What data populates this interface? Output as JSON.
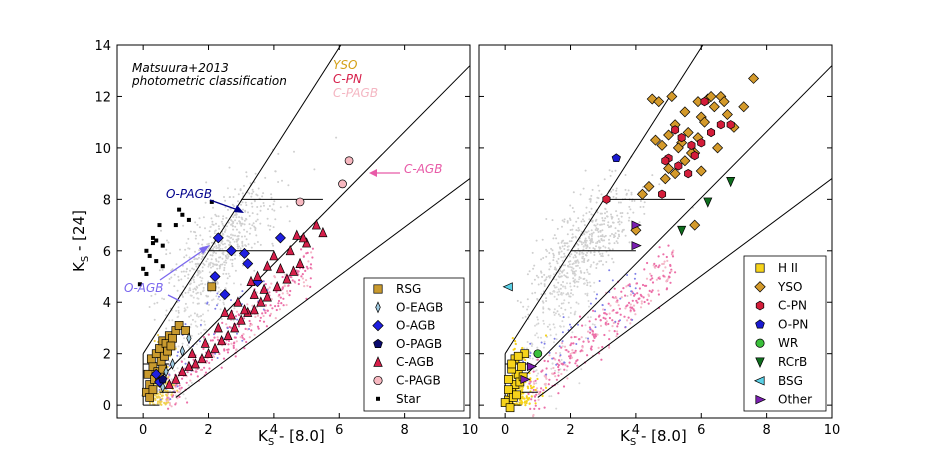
{
  "chart_data": [
    {
      "type": "scatter",
      "panel": "left",
      "xlabel_main": "K",
      "xlabel_sub": "S",
      "xlabel_rest": " - [8.0]",
      "ylabel_main": "K",
      "ylabel_sub": "S",
      "ylabel_rest": " - [24]",
      "xlim": [
        -0.8,
        10
      ],
      "ylim": [
        -0.5,
        14
      ],
      "xticks": [
        "0",
        "2",
        "4",
        "6",
        "8",
        "10"
      ],
      "yticks": [
        "0",
        "2",
        "4",
        "6",
        "8",
        "10",
        "12",
        "14"
      ],
      "title_annotation": [
        "Matsuura+2013",
        "photometric classification"
      ],
      "region_labels": [
        {
          "text": "YSO",
          "color": "#d4a017"
        },
        {
          "text": "C-PN",
          "color": "#d61f4a"
        },
        {
          "text": "C-PAGB",
          "color": "#f4b6c2"
        }
      ],
      "arrow_labels": [
        {
          "text": "O-PAGB",
          "color": "#00008b"
        },
        {
          "text": "C-AGB",
          "color": "#e85aa7"
        },
        {
          "text": "O-AGB",
          "color": "#7b68ee"
        }
      ],
      "legend": [
        {
          "name": "RSG",
          "marker": "square",
          "color": "#c99a2e"
        },
        {
          "name": "O-EAGB",
          "marker": "thin-diamond",
          "color": "#9ecae1"
        },
        {
          "name": "O-AGB",
          "marker": "diamond",
          "color": "#1f1fe0"
        },
        {
          "name": "O-PAGB",
          "marker": "pentagon",
          "color": "#0a0a6e"
        },
        {
          "name": "C-AGB",
          "marker": "triangle",
          "color": "#d61f4a"
        },
        {
          "name": "C-PAGB",
          "marker": "circle",
          "color": "#f7b8c0"
        },
        {
          "name": "Star",
          "marker": "small-square",
          "color": "#000000"
        }
      ],
      "series": [
        {
          "name": "RSG",
          "points": [
            [
              0.1,
              0.5
            ],
            [
              0.2,
              0.8
            ],
            [
              0.15,
              1.2
            ],
            [
              0.3,
              1.5
            ],
            [
              0.25,
              1.8
            ],
            [
              0.4,
              2.0
            ],
            [
              0.5,
              2.2
            ],
            [
              0.6,
              2.5
            ],
            [
              0.7,
              2.4
            ],
            [
              0.8,
              2.7
            ],
            [
              0.9,
              2.6
            ],
            [
              1.0,
              2.9
            ],
            [
              1.1,
              3.1
            ],
            [
              1.3,
              2.9
            ],
            [
              0.35,
              1.0
            ],
            [
              0.45,
              1.3
            ],
            [
              0.55,
              1.7
            ],
            [
              0.65,
              1.9
            ],
            [
              0.75,
              2.1
            ],
            [
              0.85,
              2.3
            ],
            [
              0.2,
              0.3
            ],
            [
              0.3,
              0.6
            ],
            [
              2.1,
              4.6
            ],
            [
              0.5,
              1.1
            ],
            [
              0.6,
              1.4
            ]
          ]
        },
        {
          "name": "O-EAGB",
          "points": [
            [
              0.5,
              0.9
            ],
            [
              0.7,
              1.3
            ],
            [
              0.9,
              1.6
            ],
            [
              1.2,
              2.1
            ],
            [
              0.6,
              0.7
            ],
            [
              1.4,
              2.6
            ]
          ]
        },
        {
          "name": "O-AGB",
          "points": [
            [
              0.4,
              1.2
            ],
            [
              0.5,
              0.9
            ],
            [
              2.2,
              5.0
            ],
            [
              2.3,
              6.5
            ],
            [
              2.5,
              4.3
            ],
            [
              2.7,
              6.0
            ],
            [
              3.1,
              5.9
            ],
            [
              3.2,
              5.5
            ],
            [
              3.5,
              4.8
            ],
            [
              4.2,
              6.5
            ]
          ]
        },
        {
          "name": "O-PAGB",
          "points": [
            [
              0.6,
              1.0
            ]
          ]
        },
        {
          "name": "C-AGB",
          "points": [
            [
              0.8,
              0.8
            ],
            [
              1.0,
              1.0
            ],
            [
              1.2,
              1.3
            ],
            [
              1.4,
              1.5
            ],
            [
              1.6,
              1.6
            ],
            [
              1.8,
              1.8
            ],
            [
              2.0,
              2.0
            ],
            [
              2.2,
              2.2
            ],
            [
              2.4,
              2.5
            ],
            [
              2.6,
              2.7
            ],
            [
              2.8,
              3.0
            ],
            [
              3.0,
              3.3
            ],
            [
              3.2,
              3.6
            ],
            [
              3.4,
              3.7
            ],
            [
              3.6,
              4.0
            ],
            [
              3.8,
              4.2
            ],
            [
              3.5,
              5.0
            ],
            [
              3.8,
              5.4
            ],
            [
              4.0,
              5.8
            ],
            [
              4.2,
              5.3
            ],
            [
              4.5,
              6.0
            ],
            [
              4.7,
              6.6
            ],
            [
              5.0,
              6.3
            ],
            [
              5.3,
              7.0
            ],
            [
              5.5,
              6.7
            ],
            [
              2.5,
              3.6
            ],
            [
              2.9,
              4.0
            ],
            [
              3.3,
              4.8
            ],
            [
              4.4,
              4.9
            ],
            [
              4.8,
              5.5
            ],
            [
              1.5,
              2.0
            ],
            [
              1.9,
              2.4
            ],
            [
              2.3,
              3.0
            ],
            [
              3.1,
              3.7
            ],
            [
              3.7,
              4.5
            ],
            [
              4.1,
              4.6
            ],
            [
              4.6,
              5.2
            ],
            [
              2.7,
              3.5
            ],
            [
              3.4,
              4.3
            ],
            [
              4.9,
              6.5
            ]
          ]
        },
        {
          "name": "C-PAGB",
          "points": [
            [
              4.8,
              7.9
            ],
            [
              6.1,
              8.6
            ],
            [
              6.3,
              9.5
            ]
          ]
        },
        {
          "name": "Star",
          "points": [
            [
              -0.1,
              4.7
            ],
            [
              0.0,
              5.3
            ],
            [
              0.1,
              5.1
            ],
            [
              0.1,
              6.0
            ],
            [
              0.2,
              5.8
            ],
            [
              0.3,
              6.3
            ],
            [
              0.4,
              6.4
            ],
            [
              0.5,
              7.0
            ],
            [
              0.4,
              5.6
            ],
            [
              0.6,
              6.2
            ],
            [
              0.6,
              5.4
            ],
            [
              1.1,
              7.6
            ],
            [
              1.2,
              7.4
            ],
            [
              1.4,
              7.2
            ],
            [
              2.1,
              7.9
            ],
            [
              1.0,
              7.0
            ],
            [
              0.3,
              6.5
            ]
          ]
        }
      ]
    },
    {
      "type": "scatter",
      "panel": "right",
      "xlabel_main": "K",
      "xlabel_sub": "S",
      "xlabel_rest": " - [8.0]",
      "xlim": [
        -0.8,
        10
      ],
      "ylim": [
        -0.5,
        14
      ],
      "xticks": [
        "0",
        "2",
        "4",
        "6",
        "8",
        "10"
      ],
      "legend": [
        {
          "name": "H II",
          "marker": "square",
          "color": "#f6d31a"
        },
        {
          "name": "YSO",
          "marker": "diamond",
          "color": "#d49a2b"
        },
        {
          "name": "C-PN",
          "marker": "hexagon",
          "color": "#d41d3a"
        },
        {
          "name": "O-PN",
          "marker": "pentagon",
          "color": "#1a1ad1"
        },
        {
          "name": "WR",
          "marker": "circle",
          "color": "#3bbf3b"
        },
        {
          "name": "RCrB",
          "marker": "triangle-down",
          "color": "#0e6e1d"
        },
        {
          "name": "BSG",
          "marker": "triangle-left",
          "color": "#5ad0e6"
        },
        {
          "name": "Other",
          "marker": "triangle-right",
          "color": "#7a1fb0"
        }
      ],
      "series": [
        {
          "name": "H II",
          "points": [
            [
              0.1,
              0.2
            ],
            [
              0.2,
              0.5
            ],
            [
              0.3,
              0.8
            ],
            [
              0.1,
              1.0
            ],
            [
              0.4,
              1.2
            ],
            [
              0.5,
              1.5
            ],
            [
              0.3,
              1.8
            ],
            [
              0.2,
              1.4
            ],
            [
              0.6,
              2.0
            ],
            [
              0.1,
              0.6
            ],
            [
              0.0,
              0.1
            ],
            [
              0.15,
              -0.1
            ],
            [
              0.25,
              0.3
            ],
            [
              0.35,
              0.4
            ],
            [
              0.45,
              0.9
            ],
            [
              0.55,
              1.1
            ],
            [
              0.2,
              1.6
            ],
            [
              0.4,
              1.9
            ]
          ]
        },
        {
          "name": "YSO",
          "points": [
            [
              4.8,
              10.1
            ],
            [
              5.0,
              10.5
            ],
            [
              5.2,
              10.9
            ],
            [
              5.4,
              10.2
            ],
            [
              5.6,
              10.6
            ],
            [
              5.8,
              9.8
            ],
            [
              6.0,
              11.2
            ],
            [
              6.2,
              11.9
            ],
            [
              6.4,
              11.6
            ],
            [
              6.6,
              12.0
            ],
            [
              6.8,
              11.3
            ],
            [
              7.0,
              10.8
            ],
            [
              7.3,
              11.6
            ],
            [
              7.6,
              12.7
            ],
            [
              4.6,
              10.3
            ],
            [
              4.5,
              11.9
            ],
            [
              4.7,
              11.8
            ],
            [
              5.1,
              12.0
            ],
            [
              5.5,
              11.4
            ],
            [
              5.9,
              11.8
            ],
            [
              6.1,
              11.0
            ],
            [
              6.3,
              12.0
            ],
            [
              5.2,
              9.0
            ],
            [
              5.5,
              9.5
            ],
            [
              5.7,
              9.8
            ],
            [
              5.0,
              9.2
            ],
            [
              4.4,
              8.5
            ],
            [
              4.2,
              8.2
            ],
            [
              5.8,
              7.0
            ],
            [
              4.9,
              8.8
            ],
            [
              6.5,
              10.0
            ],
            [
              6.0,
              9.1
            ],
            [
              4.0,
              6.8
            ],
            [
              5.3,
              10.0
            ],
            [
              6.7,
              11.8
            ],
            [
              5.9,
              10.4
            ]
          ]
        },
        {
          "name": "C-PN",
          "points": [
            [
              3.1,
              8.0
            ],
            [
              4.8,
              8.2
            ],
            [
              5.0,
              9.6
            ],
            [
              5.3,
              9.3
            ],
            [
              5.6,
              9.0
            ],
            [
              5.8,
              9.7
            ],
            [
              6.0,
              10.2
            ],
            [
              6.1,
              11.8
            ],
            [
              6.3,
              10.6
            ],
            [
              6.6,
              10.9
            ],
            [
              6.9,
              10.9
            ],
            [
              5.4,
              10.4
            ],
            [
              4.9,
              9.5
            ],
            [
              5.2,
              10.7
            ],
            [
              5.7,
              10.1
            ]
          ]
        },
        {
          "name": "O-PN",
          "points": [
            [
              3.4,
              9.6
            ]
          ]
        },
        {
          "name": "WR",
          "points": [
            [
              1.0,
              2.0
            ]
          ]
        },
        {
          "name": "RCrB",
          "points": [
            [
              5.4,
              6.8
            ],
            [
              6.2,
              7.9
            ],
            [
              6.9,
              8.7
            ]
          ]
        },
        {
          "name": "BSG",
          "points": [
            [
              0.1,
              4.6
            ]
          ]
        },
        {
          "name": "Other",
          "points": [
            [
              0.8,
              1.5
            ],
            [
              4.0,
              7.0
            ],
            [
              4.0,
              6.2
            ],
            [
              0.6,
              1.0
            ]
          ]
        }
      ]
    }
  ]
}
